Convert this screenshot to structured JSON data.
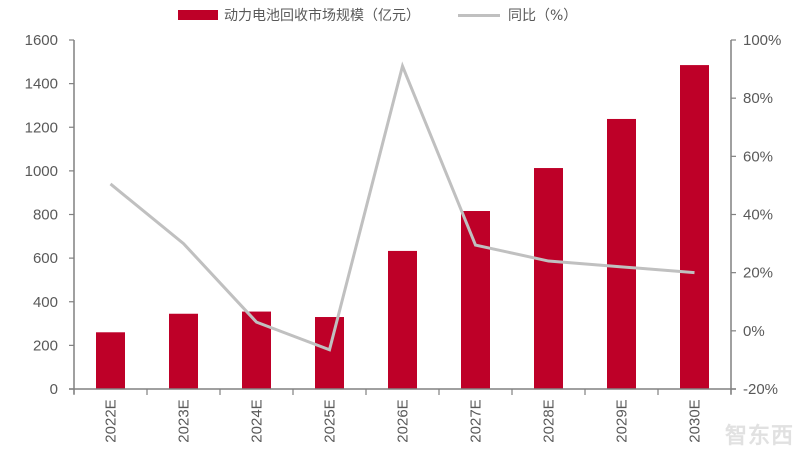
{
  "chart_data": {
    "type": "bar",
    "title": "",
    "categories": [
      "2022E",
      "2023E",
      "2024E",
      "2025E",
      "2026E",
      "2027E",
      "2028E",
      "2029E",
      "2030E"
    ],
    "series": [
      {
        "name": "动力电池回收市场规模（亿元）",
        "type": "bar",
        "axis": "left",
        "color": "#BE0028",
        "values": [
          260,
          345,
          355,
          330,
          633,
          816,
          1013,
          1238,
          1485
        ]
      },
      {
        "name": "同比（%）",
        "type": "line",
        "axis": "right",
        "color": "#C0C0C0",
        "values": [
          50.5,
          30,
          3,
          -6.5,
          91,
          29.5,
          24,
          22,
          20
        ]
      }
    ],
    "left_axis": {
      "min": 0,
      "max": 1600,
      "step": 200,
      "ticks": [
        "0",
        "200",
        "400",
        "600",
        "800",
        "1000",
        "1200",
        "1400",
        "1600"
      ]
    },
    "right_axis": {
      "min": -20,
      "max": 100,
      "step": 20,
      "ticks": [
        "-20%",
        "0%",
        "20%",
        "40%",
        "60%",
        "80%",
        "100%"
      ]
    },
    "xlabel": "",
    "ylabel": "",
    "ylim": [
      0,
      1600
    ],
    "y2lim": [
      -20,
      100
    ],
    "grid": false,
    "legend_position": "top"
  },
  "legend": {
    "bar_label": "动力电池回收市场规模（亿元）",
    "line_label": "同比（%）"
  },
  "watermark": "智东西"
}
